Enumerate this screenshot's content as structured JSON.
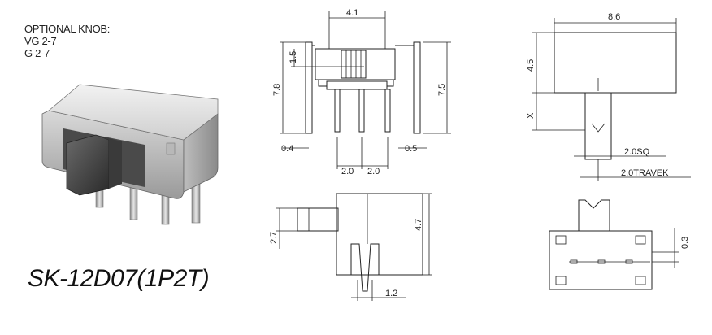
{
  "notes": {
    "line1": "OPTIONAL KNOB:",
    "line2": "VG 2-7",
    "line3": "G 2-7"
  },
  "part_number": "SK-12D07(1P2T)",
  "dims": {
    "width_top": "4.1",
    "height_knob": "1.5",
    "total_height": "7.8",
    "body_height": "7.5",
    "pin_left": "0.4",
    "pin_right": "0.5",
    "pitch_a": "2.0",
    "pitch_b": "2.0",
    "side_width": "8.6",
    "side_height": "4.5",
    "side_x": "X",
    "knob_sq": "2.0SQ",
    "travel": "2.0TRAVEK",
    "bottom_knob": "2.7",
    "bottom_height": "4.7",
    "bottom_pin": "1.2",
    "top_offset": "0.3"
  }
}
